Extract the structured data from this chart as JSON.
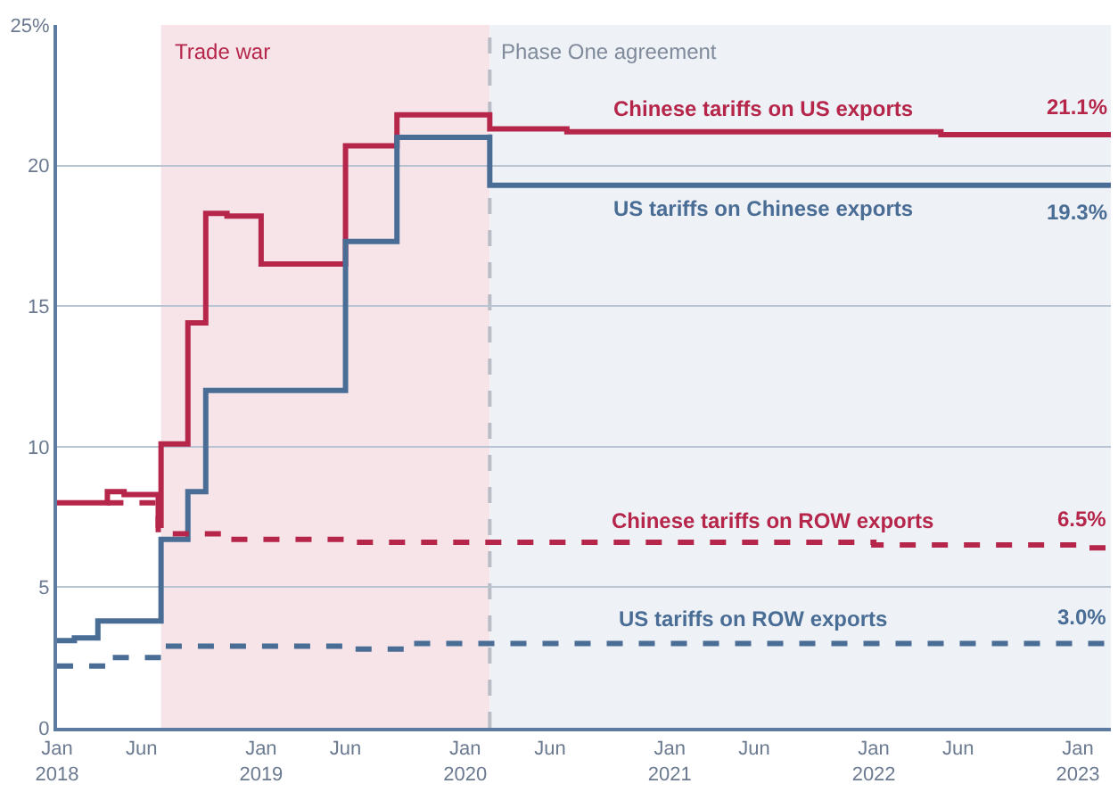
{
  "chart_data": {
    "type": "step",
    "series": [
      {
        "name": "Chinese tariffs on US exports",
        "color": "#b5264a",
        "line_style": "solid",
        "x": [
          "2018-01-01",
          "2018-04-01",
          "2018-05-01",
          "2018-07-01",
          "2018-07-06",
          "2018-08-23",
          "2018-09-24",
          "2018-11-01",
          "2019-01-01",
          "2019-06-01",
          "2019-09-01",
          "2020-02-14",
          "2020-07-01",
          "2022-05-01",
          "2023-03-01"
        ],
        "values": [
          8.0,
          8.4,
          8.3,
          7.2,
          10.1,
          14.4,
          18.3,
          18.2,
          16.5,
          20.7,
          21.8,
          21.3,
          21.2,
          21.1,
          21.1
        ],
        "value_labels": [
          null,
          null,
          null,
          null,
          null,
          null,
          null,
          null,
          null,
          null,
          null,
          null,
          null,
          null,
          "21.1%"
        ]
      },
      {
        "name": "US tariffs on Chinese exports",
        "color": "#4a6d96",
        "line_style": "solid",
        "x": [
          "2018-01-01",
          "2018-02-01",
          "2018-03-15",
          "2018-07-06",
          "2018-08-23",
          "2018-09-24",
          "2019-06-01",
          "2019-09-01",
          "2020-02-14",
          "2023-03-01"
        ],
        "values": [
          3.1,
          3.2,
          3.8,
          6.7,
          8.4,
          12.0,
          17.3,
          21.0,
          19.3,
          19.3
        ],
        "value_labels": [
          null,
          null,
          null,
          null,
          null,
          null,
          null,
          null,
          null,
          "19.3%"
        ]
      },
      {
        "name": "Chinese tariffs on ROW exports",
        "color": "#b5264a",
        "line_style": "dashed",
        "x": [
          "2018-04-01",
          "2018-07-01",
          "2018-11-01",
          "2019-06-01",
          "2022-01-01",
          "2023-01-01",
          "2023-03-01"
        ],
        "values": [
          8.0,
          6.9,
          6.7,
          6.6,
          6.5,
          6.4,
          6.5
        ],
        "value_labels": [
          null,
          null,
          null,
          null,
          null,
          null,
          "6.5%"
        ]
      },
      {
        "name": "US tariffs on ROW exports",
        "color": "#4a6d96",
        "line_style": "dashed",
        "x": [
          "2018-01-01",
          "2018-04-01",
          "2018-07-01",
          "2019-06-01",
          "2019-10-01",
          "2023-03-01"
        ],
        "values": [
          2.2,
          2.5,
          2.9,
          2.8,
          3.0,
          3.0
        ],
        "value_labels": [
          null,
          null,
          null,
          null,
          null,
          "3.0%"
        ]
      }
    ],
    "xlim": [
      "2018-01-01",
      "2023-03-01"
    ],
    "xticks": [
      {
        "value": "2018-01-01",
        "label": "Jan\n2018"
      },
      {
        "value": "2018-06-01",
        "label": "Jun"
      },
      {
        "value": "2019-01-01",
        "label": "Jan\n2019"
      },
      {
        "value": "2019-06-01",
        "label": "Jun"
      },
      {
        "value": "2020-01-01",
        "label": "Jan\n2020"
      },
      {
        "value": "2020-06-01",
        "label": "Jun"
      },
      {
        "value": "2021-01-01",
        "label": "Jan\n2021"
      },
      {
        "value": "2021-06-01",
        "label": "Jun"
      },
      {
        "value": "2022-01-01",
        "label": "Jan\n2022"
      },
      {
        "value": "2022-06-01",
        "label": "Jun"
      },
      {
        "value": "2023-01-01",
        "label": "Jan\n2023"
      }
    ],
    "ylim": [
      0,
      25
    ],
    "yticks": [
      0,
      5,
      10,
      15,
      20,
      {
        "value": 25,
        "label": "25%"
      }
    ],
    "grid": "y",
    "legend": false,
    "bands": [
      {
        "axis": "x",
        "from": "2018-07-06",
        "to": "2020-02-14",
        "label": "Trade war",
        "color": "#f7e4e9"
      },
      {
        "axis": "x",
        "from": "2020-02-14",
        "to": "2023-03-01",
        "color": "#eef1f6"
      }
    ],
    "ref_lines": [
      {
        "axis": "x",
        "value": "2020-02-14",
        "label": "Phase One agreement",
        "color": "#b8bcc4",
        "line_style": "dashed"
      }
    ]
  }
}
